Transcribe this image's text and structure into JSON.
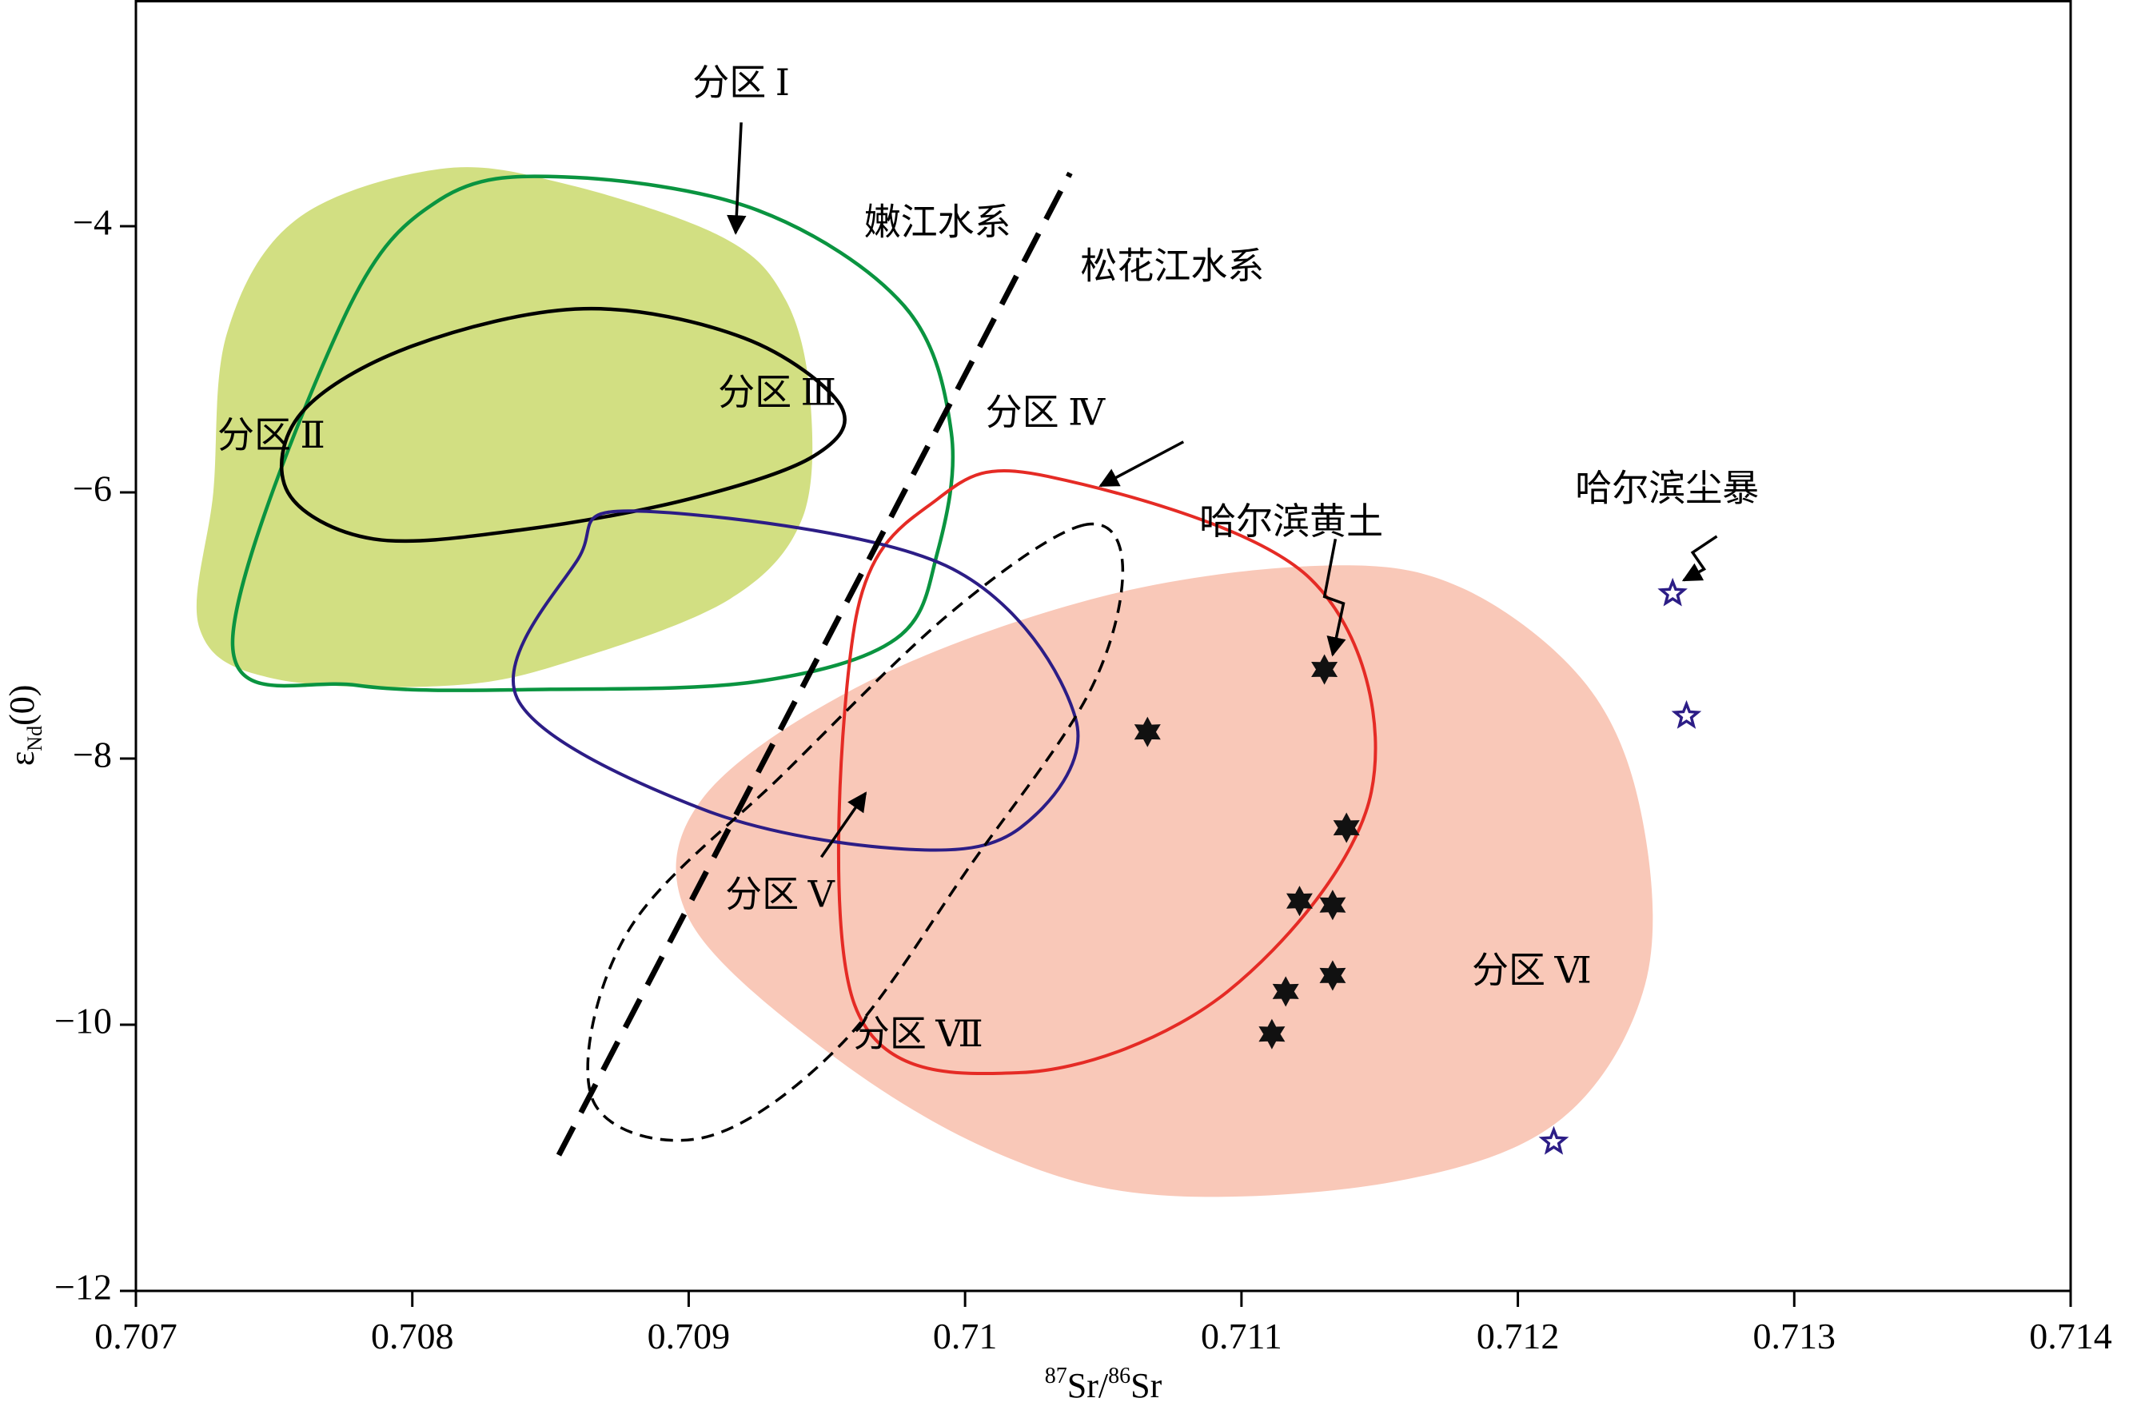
{
  "chart_data": {
    "type": "scatter",
    "xlabel": {
      "sup1": "87",
      "main1": "Sr/",
      "sup2": "86",
      "main2": "Sr"
    },
    "ylabel": {
      "main": "ε",
      "sub": "Nd",
      "tail": "(0)"
    },
    "xlim": [
      0.707,
      0.714
    ],
    "ylim": [
      -12,
      -2.3
    ],
    "x_ticks": [
      0.707,
      0.708,
      0.709,
      0.71,
      0.711,
      0.712,
      0.713,
      0.714
    ],
    "x_tick_labels": [
      "0.707",
      "0.708",
      "0.709",
      "0.71",
      "0.711",
      "0.712",
      "0.713",
      "0.714"
    ],
    "y_ticks": [
      -4,
      -6,
      -8,
      -10,
      -12
    ],
    "y_tick_labels": [
      "−4",
      "−6",
      "−8",
      "−10",
      "−12"
    ],
    "colors": {
      "zone2_fill": "#d2df82",
      "zone6_fill": "#f9c8b8",
      "zone1": "#0a9440",
      "zone3": "#000000",
      "zone4": "#e52b25",
      "zone5": "#2c1d86",
      "zone7": "#000000",
      "boundary": "#000000",
      "loess": "#111111",
      "dust": "#2c1d86"
    },
    "boundary_line": {
      "from": [
        0.70853,
        -10.98
      ],
      "to": [
        0.71038,
        -3.6
      ]
    },
    "regions": [
      {
        "id": "zone2",
        "style": "fill",
        "points": [
          [
            0.7081,
            -3.57
          ],
          [
            0.70855,
            -3.68
          ],
          [
            0.70912,
            -4.08
          ],
          [
            0.70935,
            -4.55
          ],
          [
            0.70944,
            -5.3
          ],
          [
            0.70941,
            -6.2
          ],
          [
            0.70915,
            -6.8
          ],
          [
            0.7086,
            -7.25
          ],
          [
            0.70815,
            -7.45
          ],
          [
            0.7075,
            -7.4
          ],
          [
            0.70723,
            -7.02
          ],
          [
            0.70728,
            -6.0
          ],
          [
            0.70733,
            -4.8
          ],
          [
            0.70758,
            -3.95
          ]
        ]
      },
      {
        "id": "zone6",
        "style": "fill",
        "points": [
          [
            0.7113,
            -6.55
          ],
          [
            0.7118,
            -6.72
          ],
          [
            0.71225,
            -7.45
          ],
          [
            0.71245,
            -8.45
          ],
          [
            0.71246,
            -9.7
          ],
          [
            0.71215,
            -10.72
          ],
          [
            0.71155,
            -11.18
          ],
          [
            0.7107,
            -11.28
          ],
          [
            0.7101,
            -10.95
          ],
          [
            0.7095,
            -10.2
          ],
          [
            0.709,
            -9.2
          ],
          [
            0.70905,
            -8.3
          ],
          [
            0.70965,
            -7.42
          ],
          [
            0.7105,
            -6.78
          ]
        ]
      },
      {
        "id": "zone1",
        "style": "stroke",
        "width": 4.5,
        "points": [
          [
            0.70855,
            -3.63
          ],
          [
            0.70925,
            -3.88
          ],
          [
            0.70978,
            -4.6
          ],
          [
            0.70995,
            -5.55
          ],
          [
            0.7099,
            -6.45
          ],
          [
            0.70975,
            -7.1
          ],
          [
            0.70925,
            -7.42
          ],
          [
            0.7085,
            -7.48
          ],
          [
            0.7078,
            -7.45
          ],
          [
            0.70735,
            -7.15
          ],
          [
            0.70775,
            -4.7
          ],
          [
            0.7081,
            -3.8
          ]
        ]
      },
      {
        "id": "zone3",
        "style": "stroke",
        "width": 4.5,
        "points": [
          [
            0.70862,
            -4.62
          ],
          [
            0.7092,
            -4.84
          ],
          [
            0.70955,
            -5.35
          ],
          [
            0.70945,
            -5.73
          ],
          [
            0.709,
            -6.05
          ],
          [
            0.7084,
            -6.28
          ],
          [
            0.70786,
            -6.35
          ],
          [
            0.70755,
            -6.0
          ],
          [
            0.7076,
            -5.4
          ],
          [
            0.708,
            -4.9
          ]
        ]
      },
      {
        "id": "zone4",
        "style": "stroke",
        "width": 4,
        "points": [
          [
            0.7103,
            -5.88
          ],
          [
            0.71125,
            -6.65
          ],
          [
            0.71147,
            -8.25
          ],
          [
            0.71095,
            -9.75
          ],
          [
            0.7102,
            -10.36
          ],
          [
            0.7096,
            -9.85
          ],
          [
            0.7096,
            -7.0
          ],
          [
            0.7099,
            -6.05
          ]
        ]
      },
      {
        "id": "zone5",
        "style": "stroke",
        "width": 4,
        "points": [
          [
            0.7088,
            -6.14
          ],
          [
            0.70993,
            -6.55
          ],
          [
            0.7104,
            -7.7
          ],
          [
            0.7102,
            -8.52
          ],
          [
            0.70978,
            -8.68
          ],
          [
            0.70905,
            -8.38
          ],
          [
            0.70838,
            -7.55
          ],
          [
            0.7086,
            -6.5
          ]
        ]
      },
      {
        "id": "zone7",
        "style": "dash",
        "width": 3.5,
        "points": [
          [
            0.71042,
            -6.25
          ],
          [
            0.71057,
            -6.55
          ],
          [
            0.71045,
            -7.5
          ],
          [
            0.71002,
            -8.8
          ],
          [
            0.70955,
            -10.15
          ],
          [
            0.70905,
            -10.85
          ],
          [
            0.70865,
            -10.55
          ],
          [
            0.70878,
            -9.3
          ],
          [
            0.70935,
            -8.1
          ],
          [
            0.70995,
            -6.9
          ]
        ]
      }
    ],
    "series": [
      {
        "name": "哈尔滨黄土",
        "marker": "filled-star6",
        "x": [
          0.71066,
          0.7113,
          0.71138,
          0.71121,
          0.71133,
          0.71133,
          0.71116,
          0.71111
        ],
        "y": [
          -7.8,
          -7.33,
          -8.52,
          -9.07,
          -9.1,
          -9.63,
          -9.75,
          -10.07
        ]
      },
      {
        "name": "哈尔滨尘暴",
        "marker": "hollow-star5",
        "x": [
          0.71256,
          0.71261,
          0.71213
        ],
        "y": [
          -6.76,
          -7.68,
          -10.88
        ]
      }
    ],
    "labels": [
      {
        "id": "zone1",
        "text": "分区 Ⅰ",
        "x": 0.70919,
        "y": -2.95
      },
      {
        "id": "zone2",
        "text": "分区 Ⅱ",
        "x": 0.70749,
        "y": -5.6
      },
      {
        "id": "zone3",
        "text": "分区 Ⅲ",
        "x": 0.70932,
        "y": -5.28
      },
      {
        "id": "zone4",
        "text": "分区 Ⅳ",
        "x": 0.71029,
        "y": -5.43
      },
      {
        "id": "zone5",
        "text": "分区 Ⅴ",
        "x": 0.70933,
        "y": -9.05
      },
      {
        "id": "zone6",
        "text": "分区 Ⅵ",
        "x": 0.71205,
        "y": -9.62
      },
      {
        "id": "zone7",
        "text": "分区 Ⅶ",
        "x": 0.70983,
        "y": -10.1
      },
      {
        "id": "nen",
        "text": "嫩江水系",
        "x": 0.7099,
        "y": -4.0
      },
      {
        "id": "song",
        "text": "松花江水系",
        "x": 0.71075,
        "y": -4.33
      },
      {
        "id": "loess",
        "text": "哈尔滨黄土",
        "x": 0.71118,
        "y": -6.25
      },
      {
        "id": "dust",
        "text": "哈尔滨尘暴",
        "x": 0.71254,
        "y": -6.0
      }
    ],
    "arrows": [
      {
        "id": "zone1-arrow",
        "from": [
          0.70919,
          -3.22
        ],
        "to": [
          0.70917,
          -4.05
        ],
        "zigzag": false
      },
      {
        "id": "zone4-arrow",
        "from": [
          0.71079,
          -5.62
        ],
        "to": [
          0.71049,
          -5.95
        ],
        "zigzag": false
      },
      {
        "id": "zone5-arrow",
        "from": [
          0.70948,
          -8.74
        ],
        "to": [
          0.70964,
          -8.26
        ],
        "zigzag": false
      },
      {
        "id": "loess-arrow",
        "from": [
          0.71134,
          -6.35
        ],
        "to": [
          0.71133,
          -7.22
        ],
        "zigzag": true
      },
      {
        "id": "dust-arrow",
        "from": [
          0.71272,
          -6.33
        ],
        "to": [
          0.7126,
          -6.66
        ],
        "zigzag": true
      }
    ]
  }
}
